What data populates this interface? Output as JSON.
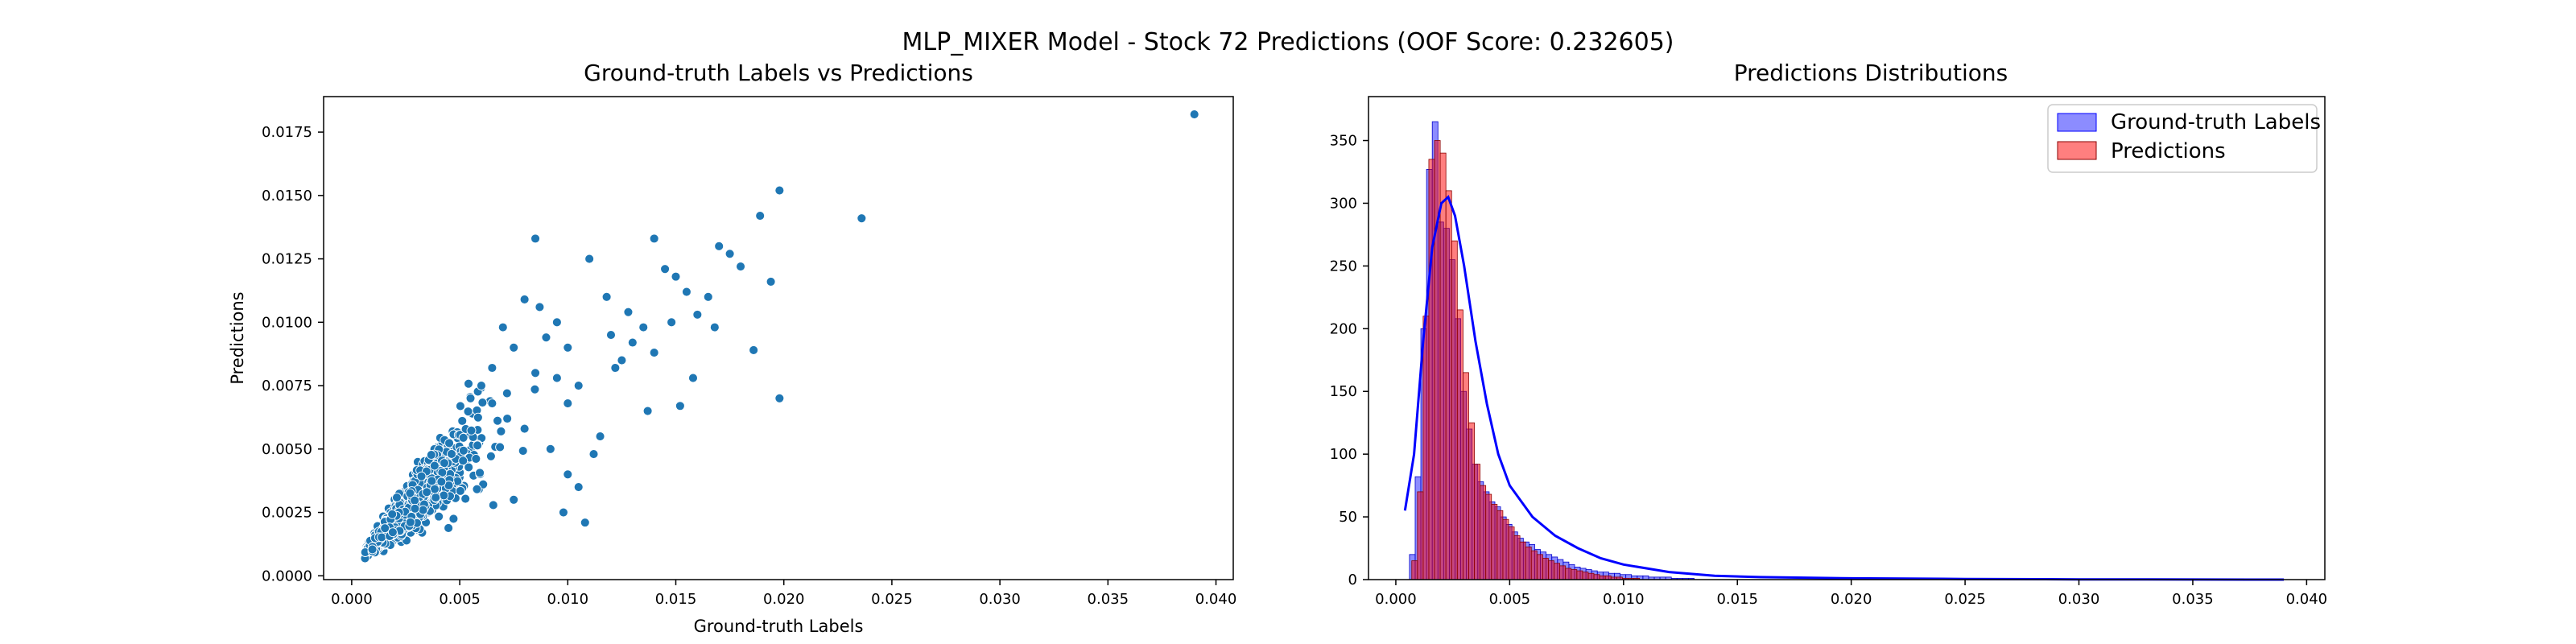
{
  "figure": {
    "suptitle": "MLP_MIXER Model - Stock 72 Predictions (OOF Score: 0.232605)"
  },
  "colors": {
    "scatter": "#1f77b4",
    "hist_truth": "#0000ff",
    "hist_pred": "#ff0000",
    "axis": "#000000"
  },
  "chart_data": [
    {
      "type": "scatter",
      "title": "Ground-truth Labels vs Predictions",
      "xlabel": "Ground-truth Labels",
      "ylabel": "Predictions",
      "xlim": [
        -0.0013,
        0.0408
      ],
      "ylim": [
        -0.00015,
        0.0189
      ],
      "xticks": [
        0.0,
        0.005,
        0.01,
        0.015,
        0.02,
        0.025,
        0.03,
        0.035,
        0.04
      ],
      "xtick_labels": [
        "0.000",
        "0.005",
        "0.010",
        "0.015",
        "0.020",
        "0.025",
        "0.030",
        "0.035",
        "0.040"
      ],
      "yticks": [
        0.0,
        0.0025,
        0.005,
        0.0075,
        0.01,
        0.0125,
        0.015,
        0.0175
      ],
      "ytick_labels": [
        "0.0000",
        "0.0025",
        "0.0050",
        "0.0075",
        "0.0100",
        "0.0125",
        "0.0150",
        "0.0175"
      ],
      "cluster_center": [
        0.0028,
        0.0029
      ],
      "points": [
        [
          0.039,
          0.0182
        ],
        [
          0.0236,
          0.0141
        ],
        [
          0.0198,
          0.0152
        ],
        [
          0.0189,
          0.0142
        ],
        [
          0.0194,
          0.0116
        ],
        [
          0.0198,
          0.007
        ],
        [
          0.0186,
          0.0089
        ],
        [
          0.017,
          0.013
        ],
        [
          0.0175,
          0.0127
        ],
        [
          0.0165,
          0.011
        ],
        [
          0.018,
          0.0122
        ],
        [
          0.0155,
          0.0112
        ],
        [
          0.016,
          0.0103
        ],
        [
          0.015,
          0.0118
        ],
        [
          0.0152,
          0.0067
        ],
        [
          0.014,
          0.0133
        ],
        [
          0.0145,
          0.0121
        ],
        [
          0.0135,
          0.0098
        ],
        [
          0.0137,
          0.0065
        ],
        [
          0.0118,
          0.011
        ],
        [
          0.012,
          0.0095
        ],
        [
          0.0125,
          0.0085
        ],
        [
          0.011,
          0.0125
        ],
        [
          0.0108,
          0.0021
        ],
        [
          0.0105,
          0.0075
        ],
        [
          0.01,
          0.009
        ],
        [
          0.0095,
          0.01
        ],
        [
          0.0085,
          0.0133
        ],
        [
          0.0087,
          0.0106
        ],
        [
          0.009,
          0.0094
        ],
        [
          0.008,
          0.0109
        ],
        [
          0.0075,
          0.009
        ],
        [
          0.007,
          0.0098
        ],
        [
          0.0115,
          0.0055
        ],
        [
          0.01,
          0.004
        ],
        [
          0.0092,
          0.005
        ],
        [
          0.0105,
          0.0035
        ],
        [
          0.0075,
          0.003
        ],
        [
          0.01,
          0.0068
        ],
        [
          0.0095,
          0.0078
        ],
        [
          0.0085,
          0.008
        ],
        [
          0.0065,
          0.0082
        ],
        [
          0.006,
          0.0075
        ],
        [
          0.0055,
          0.007
        ],
        [
          0.0112,
          0.0048
        ],
        [
          0.0098,
          0.0025
        ],
        [
          0.008,
          0.0058
        ],
        [
          0.0072,
          0.0062
        ],
        [
          0.0065,
          0.0068
        ],
        [
          0.013,
          0.0092
        ],
        [
          0.014,
          0.0088
        ],
        [
          0.0122,
          0.0082
        ],
        [
          0.0158,
          0.0078
        ],
        [
          0.0168,
          0.0098
        ],
        [
          0.0128,
          0.0104
        ],
        [
          0.0148,
          0.01
        ]
      ]
    },
    {
      "type": "histogram",
      "title": "Predictions Distributions",
      "xlabel": "",
      "ylabel": "",
      "xlim": [
        -0.0012,
        0.0408
      ],
      "ylim": [
        0,
        385
      ],
      "xticks": [
        0.0,
        0.005,
        0.01,
        0.015,
        0.02,
        0.025,
        0.03,
        0.035,
        0.04
      ],
      "xtick_labels": [
        "0.000",
        "0.005",
        "0.010",
        "0.015",
        "0.020",
        "0.025",
        "0.030",
        "0.035",
        "0.040"
      ],
      "yticks": [
        0,
        50,
        100,
        150,
        200,
        250,
        300,
        350
      ],
      "ytick_labels": [
        "0",
        "50",
        "100",
        "150",
        "200",
        "250",
        "300",
        "350"
      ],
      "bin_width": 0.00025,
      "series": [
        {
          "name": "Ground-truth Labels",
          "x_start": 0.0006,
          "counts": [
            20,
            82,
            200,
            327,
            365,
            285,
            280,
            255,
            208,
            150,
            120,
            92,
            78,
            70,
            62,
            58,
            50,
            44,
            38,
            33,
            30,
            28,
            24,
            22,
            20,
            18,
            16,
            14,
            12,
            10,
            9,
            8,
            7,
            6,
            6,
            5,
            5,
            4,
            4,
            3,
            3,
            3,
            2,
            2,
            2,
            2,
            1,
            1,
            1,
            1
          ],
          "kde": [
            [
              0.0004,
              55
            ],
            [
              0.0008,
              100
            ],
            [
              0.0012,
              190
            ],
            [
              0.0016,
              265
            ],
            [
              0.002,
              300
            ],
            [
              0.0023,
              305
            ],
            [
              0.0026,
              290
            ],
            [
              0.003,
              250
            ],
            [
              0.0035,
              190
            ],
            [
              0.004,
              140
            ],
            [
              0.0045,
              100
            ],
            [
              0.005,
              75
            ],
            [
              0.006,
              50
            ],
            [
              0.007,
              35
            ],
            [
              0.008,
              25
            ],
            [
              0.009,
              17
            ],
            [
              0.01,
              12
            ],
            [
              0.012,
              6
            ],
            [
              0.014,
              3
            ],
            [
              0.016,
              2
            ],
            [
              0.02,
              1
            ],
            [
              0.025,
              0.5
            ],
            [
              0.03,
              0.2
            ],
            [
              0.039,
              0
            ]
          ]
        },
        {
          "name": "Predictions",
          "x_start": 0.0007,
          "counts": [
            15,
            70,
            210,
            335,
            350,
            340,
            310,
            270,
            215,
            165,
            125,
            92,
            75,
            68,
            60,
            55,
            48,
            42,
            35,
            30,
            26,
            23,
            20,
            17,
            15,
            13,
            11,
            9,
            8,
            7,
            6,
            5,
            4,
            3,
            3,
            2,
            2,
            1,
            1,
            1
          ]
        }
      ],
      "legend": [
        "Ground-truth Labels",
        "Predictions"
      ]
    }
  ]
}
